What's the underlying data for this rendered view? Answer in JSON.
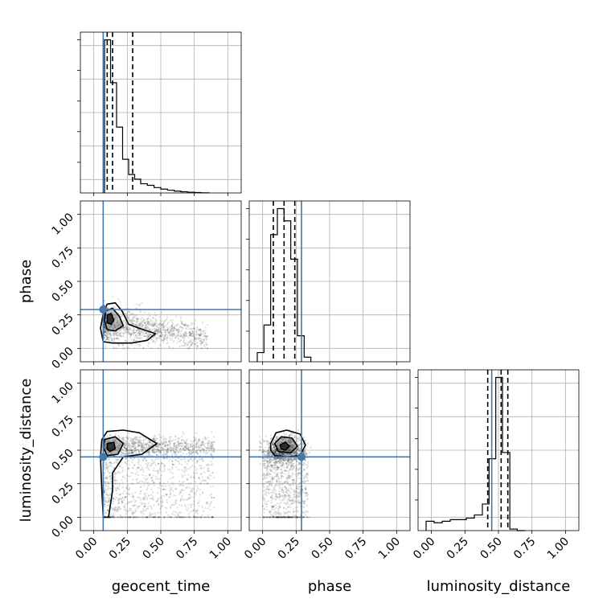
{
  "chart_data": {
    "type": "corner",
    "parameters": [
      "geocent_time",
      "phase",
      "luminosity_distance"
    ],
    "axis_range": [
      -0.1,
      1.1
    ],
    "ticks": [
      0.0,
      0.25,
      0.5,
      0.75,
      1.0
    ],
    "tick_labels": [
      "0.00",
      "0.25",
      "0.50",
      "0.75",
      "1.00"
    ],
    "grid": true,
    "truth_color": "#4477aa",
    "truths": {
      "geocent_time": 0.07,
      "phase": 0.29,
      "luminosity_distance": 0.45
    },
    "quantiles": {
      "geocent_time": [
        0.1,
        0.14,
        0.29
      ],
      "phase": [
        0.08,
        0.16,
        0.24
      ],
      "luminosity_distance": [
        0.42,
        0.52,
        0.57
      ]
    },
    "histograms": {
      "geocent_time": {
        "edges": [
          0.08,
          0.125,
          0.17,
          0.215,
          0.26,
          0.305,
          0.35,
          0.4,
          0.45,
          0.5,
          0.55,
          0.6,
          0.65,
          0.7,
          0.75,
          0.8,
          0.86
        ],
        "counts": [
          1.0,
          0.72,
          0.43,
          0.22,
          0.12,
          0.09,
          0.06,
          0.05,
          0.035,
          0.025,
          0.018,
          0.012,
          0.008,
          0.005,
          0.003,
          0.001
        ]
      },
      "phase": {
        "edges": [
          -0.04,
          0.01,
          0.06,
          0.11,
          0.16,
          0.21,
          0.26,
          0.31,
          0.36
        ],
        "counts": [
          0.06,
          0.24,
          0.83,
          1.0,
          0.92,
          0.67,
          0.17,
          0.03
        ]
      },
      "luminosity_distance": {
        "edges": [
          -0.04,
          0.02,
          0.08,
          0.14,
          0.2,
          0.26,
          0.32,
          0.38,
          0.43,
          0.48,
          0.53,
          0.585,
          0.64,
          0.7
        ],
        "counts": [
          0.06,
          0.05,
          0.06,
          0.07,
          0.07,
          0.08,
          0.1,
          0.17,
          0.46,
          0.98,
          0.5,
          0.01,
          0.0
        ]
      }
    }
  }
}
